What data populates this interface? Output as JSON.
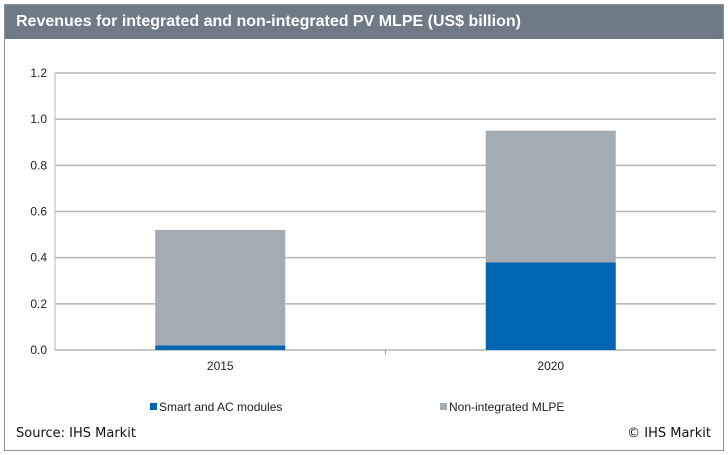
{
  "chart_data": {
    "type": "bar",
    "stacked": true,
    "title": "Revenues for integrated and non-integrated PV MLPE (US$ billion)",
    "categories": [
      "2015",
      "2020"
    ],
    "series": [
      {
        "name": "Smart and AC modules",
        "values": [
          0.02,
          0.38
        ],
        "color": "#0066b3"
      },
      {
        "name": "Non-integrated MLPE",
        "values": [
          0.5,
          0.57
        ],
        "color": "#a2acb2"
      }
    ],
    "ylim": [
      0,
      1.2
    ],
    "yticks": [
      "0.0",
      "0.2",
      "0.4",
      "0.6",
      "0.8",
      "1.0",
      "1.2"
    ],
    "grid": true,
    "legend": "bottom"
  },
  "footer": {
    "source": "Source: IHS Markit",
    "copyright": "© IHS Markit"
  }
}
